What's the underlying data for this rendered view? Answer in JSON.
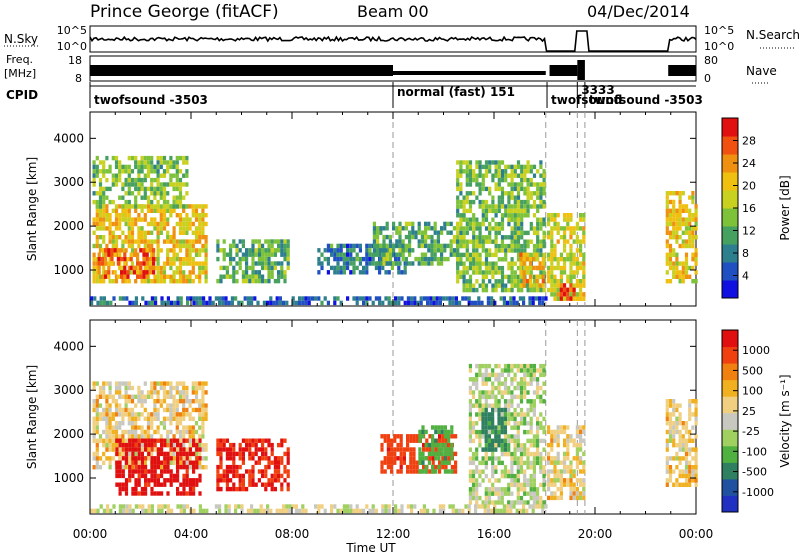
{
  "header": {
    "station": "Prince George (fitACF)",
    "beam": "Beam 00",
    "date": "04/Dec/2014"
  },
  "summary_panels": {
    "nsky_label": "N.Sky",
    "nsky_ticks": [
      "10^5",
      "10^0"
    ],
    "nsearch_label": "N.Search",
    "nsearch_ticks": [
      "10^5",
      "10^0"
    ],
    "freq_label": "Freq.",
    "freq_unit": "[MHz]",
    "freq_ticks": [
      "18",
      "8"
    ],
    "nave_label": "Nave",
    "nave_ticks": [
      "80",
      "0"
    ],
    "cpid_label": "CPID",
    "cpid_segments": [
      {
        "label": "twofsound -3503",
        "start_hour": 0.0,
        "end_hour": 12.0
      },
      {
        "label": "normal (fast) 151",
        "start_hour": 12.0,
        "end_hour": 18.1
      },
      {
        "label": "3333",
        "start_hour": 19.3,
        "end_hour": 19.6
      },
      {
        "label": "twofsound",
        "start_hour": 18.1,
        "end_hour": 19.3
      },
      {
        "label": "twofsound -3503",
        "start_hour": 19.6,
        "end_hour": 24.0
      }
    ]
  },
  "chart_data": [
    {
      "type": "heatmap",
      "name": "power",
      "ylabel": "Slant Range [km]",
      "xlim": [
        0,
        24
      ],
      "ylim": [
        180,
        4600
      ],
      "yticks": [
        1000,
        2000,
        3000,
        4000
      ],
      "colorbar": {
        "label": "Power [dB]",
        "ticks": [
          "28",
          "24",
          "20",
          "16",
          "12",
          "8",
          "4"
        ],
        "colors": [
          "#1010e0",
          "#1f4fc0",
          "#2d7f8e",
          "#46a060",
          "#7ec23a",
          "#c8d020",
          "#f0c010",
          "#f09010",
          "#f05010",
          "#e01010"
        ]
      },
      "regions": [
        {
          "h0": 0.1,
          "h1": 4.6,
          "r0": 700,
          "r1": 2500,
          "v": 20
        },
        {
          "h0": 0.1,
          "h1": 3.8,
          "r0": 2400,
          "r1": 3600,
          "v": 14
        },
        {
          "h0": 0.3,
          "h1": 2.5,
          "r0": 800,
          "r1": 1500,
          "v": 26
        },
        {
          "h0": 5.0,
          "h1": 7.8,
          "r0": 700,
          "r1": 1700,
          "v": 12
        },
        {
          "h0": 9.0,
          "h1": 12.5,
          "r0": 900,
          "r1": 1600,
          "v": 8
        },
        {
          "h0": 11.2,
          "h1": 14.5,
          "r0": 1100,
          "r1": 2100,
          "v": 12
        },
        {
          "h0": 14.5,
          "h1": 18.0,
          "r0": 500,
          "r1": 3500,
          "v": 14
        },
        {
          "h0": 17.0,
          "h1": 18.0,
          "r0": 600,
          "r1": 1400,
          "v": 22
        },
        {
          "h0": 18.1,
          "h1": 19.5,
          "r0": 300,
          "r1": 2300,
          "v": 18
        },
        {
          "h0": 18.6,
          "h1": 19.2,
          "r0": 300,
          "r1": 700,
          "v": 28
        },
        {
          "h0": 22.8,
          "h1": 24.0,
          "r0": 700,
          "r1": 2800,
          "v": 20
        },
        {
          "h0": 0.0,
          "h1": 18.0,
          "r0": 200,
          "r1": 400,
          "v": 6
        }
      ]
    },
    {
      "type": "heatmap",
      "name": "velocity",
      "ylabel": "Slant Range [km]",
      "xlabel": "Time UT",
      "xlim": [
        0,
        24
      ],
      "ylim": [
        180,
        4600
      ],
      "yticks": [
        1000,
        2000,
        3000,
        4000
      ],
      "xticks": [
        "00:00",
        "04:00",
        "08:00",
        "12:00",
        "16:00",
        "20:00",
        "00:00"
      ],
      "colorbar": {
        "label": "Velocity [m s⁻¹]",
        "ticks": [
          "1000",
          "500",
          "100",
          "25",
          "-25",
          "-100",
          "-500",
          "-1000"
        ],
        "colors": [
          "#2030c0",
          "#2050a0",
          "#2f8060",
          "#50b040",
          "#a0d060",
          "#c8c8c0",
          "#f0d080",
          "#f0b020",
          "#f08010",
          "#f04010",
          "#e01010"
        ]
      },
      "regions": [
        {
          "h0": 0.1,
          "h1": 4.6,
          "r0": 1200,
          "r1": 3200,
          "v": 0
        },
        {
          "h0": 1.0,
          "h1": 4.4,
          "r0": 600,
          "r1": 1900,
          "v": -300
        },
        {
          "h0": 5.0,
          "h1": 7.8,
          "r0": 700,
          "r1": 1900,
          "v": -250
        },
        {
          "h0": 11.5,
          "h1": 14.5,
          "r0": 1100,
          "r1": 2000,
          "v": -200
        },
        {
          "h0": 13.0,
          "h1": 14.3,
          "r0": 1100,
          "r1": 2200,
          "v": 200
        },
        {
          "h0": 15.0,
          "h1": 18.0,
          "r0": 400,
          "r1": 3600,
          "v": 60
        },
        {
          "h0": 15.5,
          "h1": 16.4,
          "r0": 1600,
          "r1": 2600,
          "v": 300
        },
        {
          "h0": 18.1,
          "h1": 19.5,
          "r0": 500,
          "r1": 2200,
          "v": 0
        },
        {
          "h0": 22.8,
          "h1": 24.0,
          "r0": 800,
          "r1": 2800,
          "v": 0
        },
        {
          "h0": 0.0,
          "h1": 18.0,
          "r0": 200,
          "r1": 400,
          "v": 40
        }
      ]
    }
  ]
}
